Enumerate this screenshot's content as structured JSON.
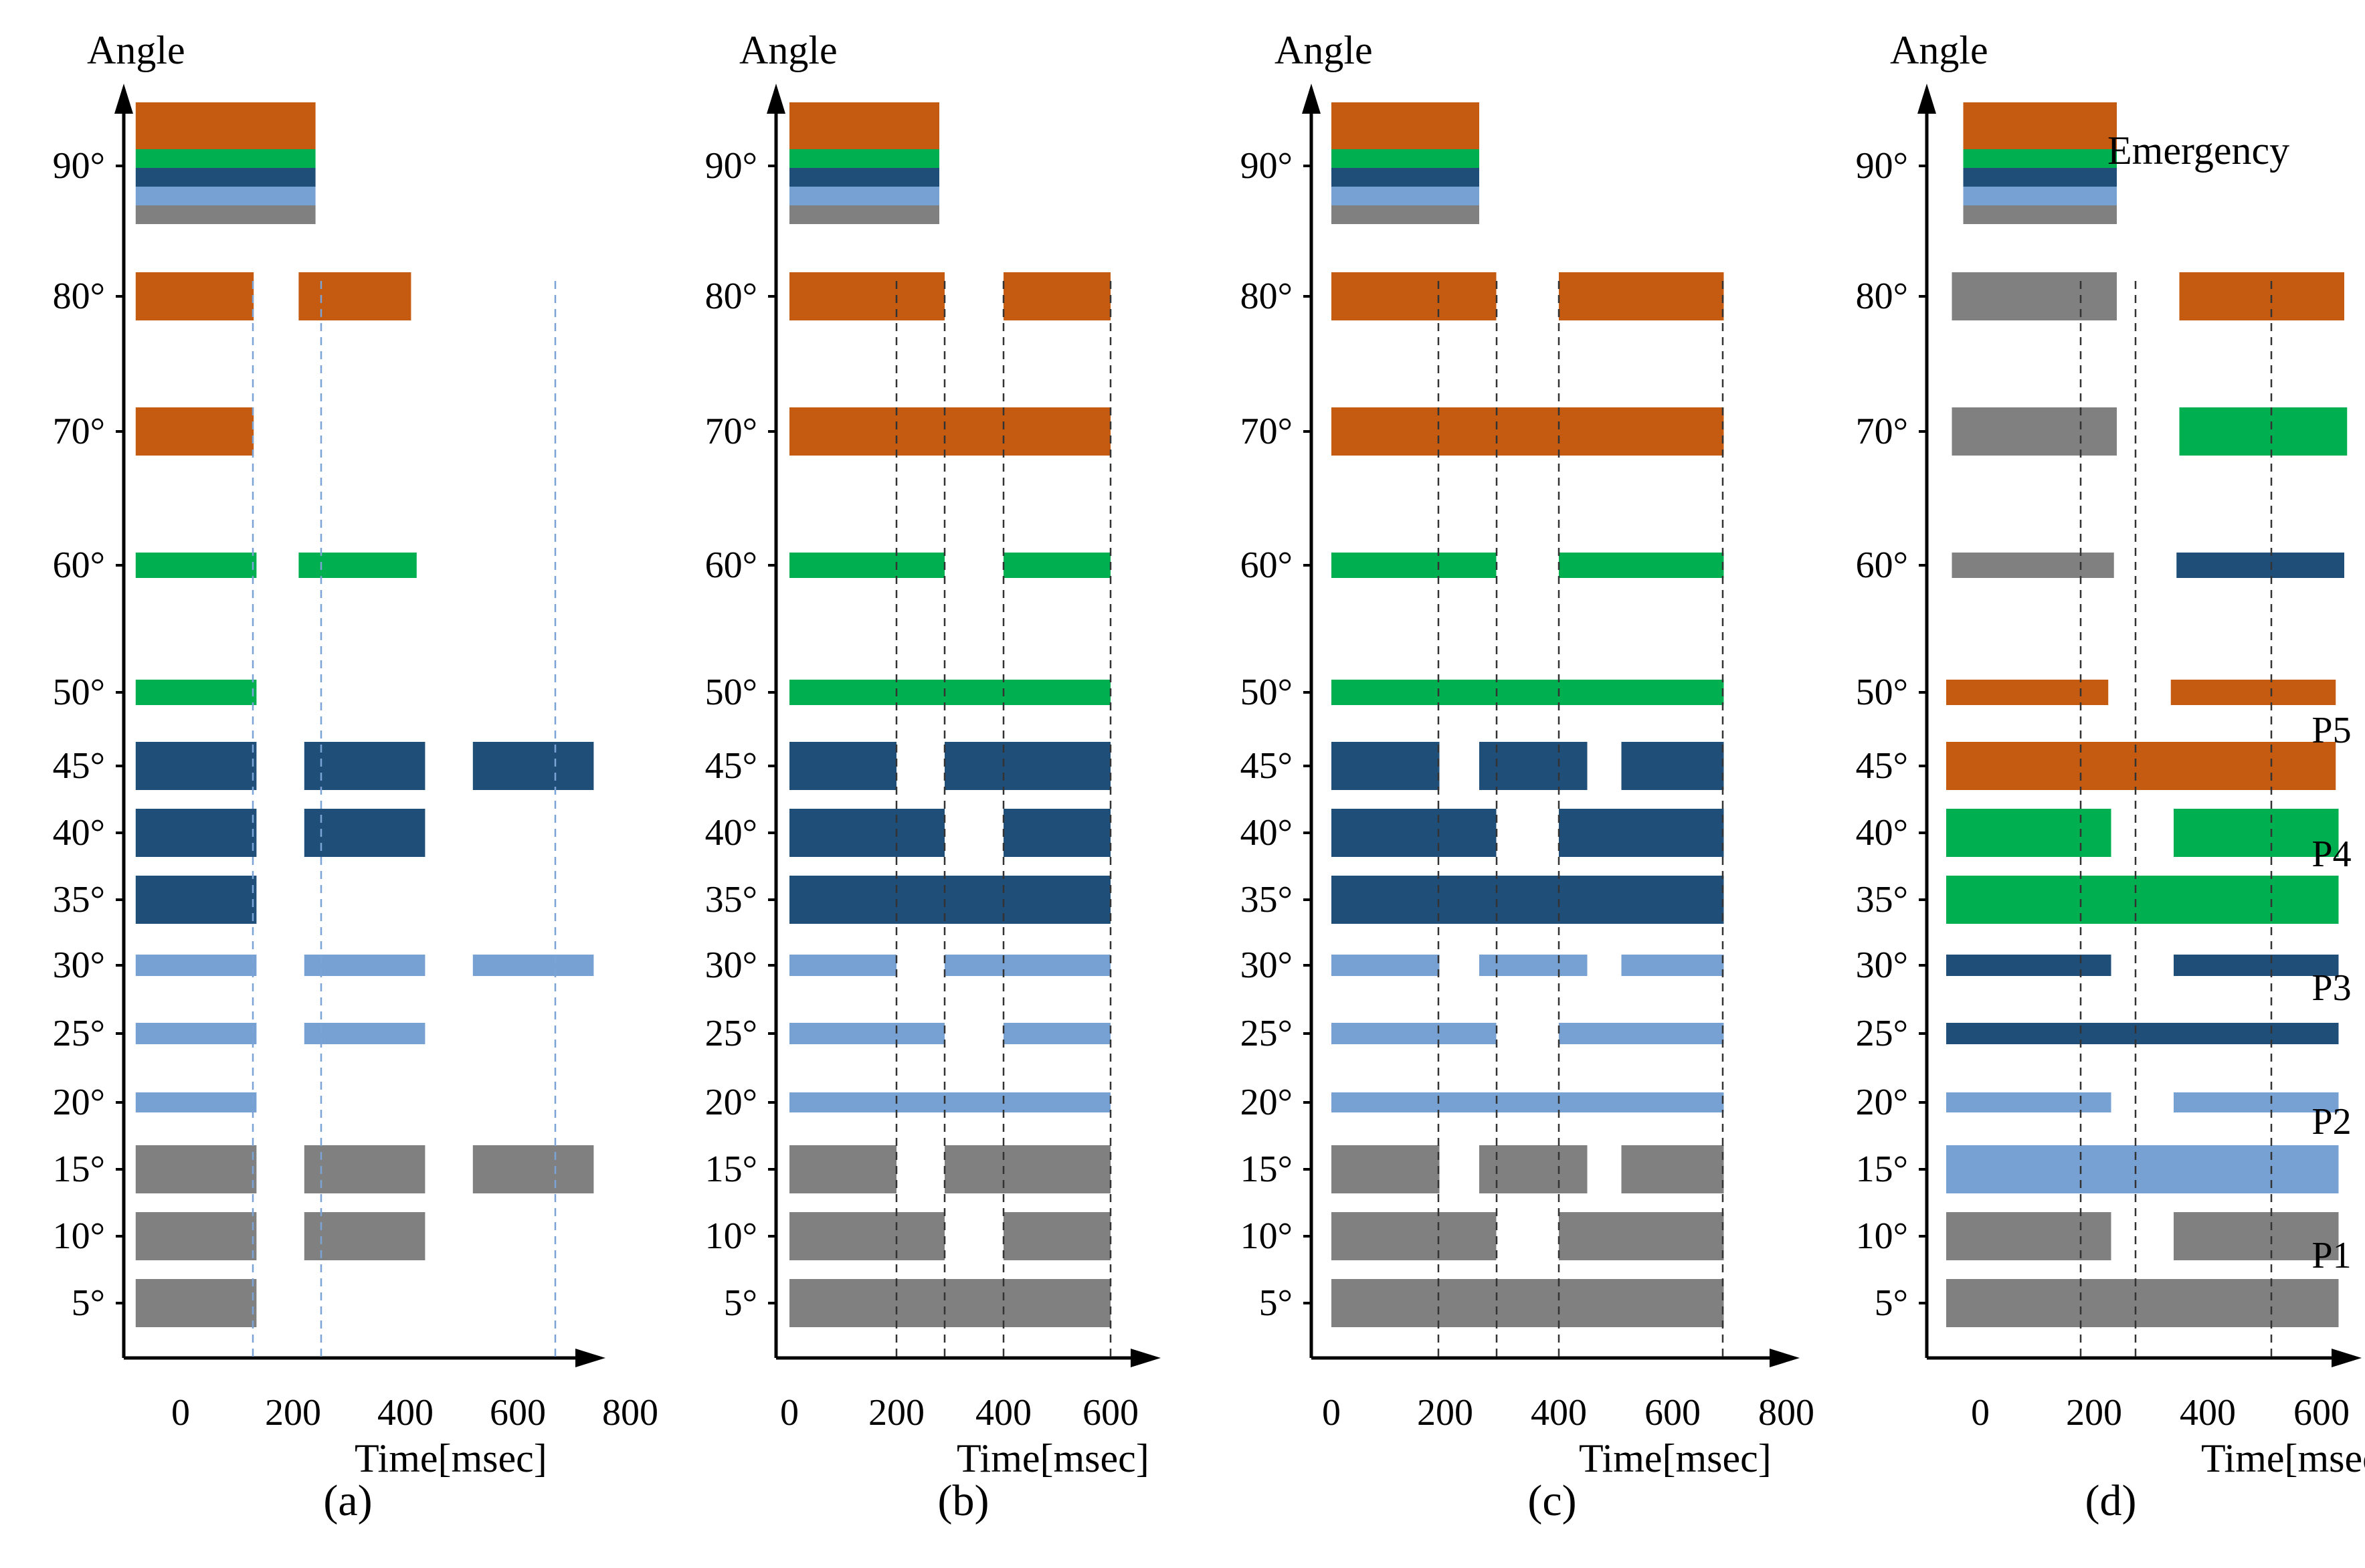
{
  "colors": {
    "orange": "#c55a11",
    "green": "#00b050",
    "darkblue": "#1f4e79",
    "lightblue": "#77a1d3",
    "gray": "#808080"
  },
  "chart_data": [
    {
      "type": "bar",
      "panel_label": "(a)",
      "ylabel": "Angle",
      "xlabel": "Time[msec]",
      "x_ticks": [
        "0",
        "200",
        "400",
        "600",
        "800"
      ],
      "y_ticks": [
        "5°",
        "10°",
        "15°",
        "20°",
        "25°",
        "30°",
        "35°",
        "40°",
        "45°",
        "50°",
        "60°",
        "70°",
        "80°",
        "90°"
      ],
      "emergency_stack": {
        "colors": [
          "orange",
          "green",
          "darkblue",
          "lightblue",
          "gray"
        ],
        "x": [
          -80,
          240
        ]
      },
      "bars": [
        {
          "angle": 80,
          "color": "orange",
          "segments": [
            [
              -80,
              130
            ],
            [
              210,
              410
            ]
          ]
        },
        {
          "angle": 70,
          "color": "orange",
          "segments": [
            [
              -80,
              130
            ]
          ]
        },
        {
          "angle": 60,
          "color": "green",
          "segments": [
            [
              -80,
              135
            ],
            [
              210,
              420
            ]
          ]
        },
        {
          "angle": 50,
          "color": "green",
          "segments": [
            [
              -80,
              135
            ]
          ]
        },
        {
          "angle": 45,
          "color": "darkblue",
          "segments": [
            [
              -80,
              135
            ],
            [
              220,
              435
            ],
            [
              520,
              735
            ]
          ]
        },
        {
          "angle": 40,
          "color": "darkblue",
          "segments": [
            [
              -80,
              135
            ],
            [
              220,
              435
            ]
          ]
        },
        {
          "angle": 35,
          "color": "darkblue",
          "segments": [
            [
              -80,
              135
            ]
          ]
        },
        {
          "angle": 30,
          "color": "lightblue",
          "segments": [
            [
              -80,
              135
            ],
            [
              220,
              435
            ],
            [
              520,
              735
            ]
          ]
        },
        {
          "angle": 25,
          "color": "lightblue",
          "segments": [
            [
              -80,
              135
            ],
            [
              220,
              435
            ]
          ]
        },
        {
          "angle": 20,
          "color": "lightblue",
          "segments": [
            [
              -80,
              135
            ]
          ]
        },
        {
          "angle": 15,
          "color": "gray",
          "segments": [
            [
              -80,
              135
            ],
            [
              220,
              435
            ],
            [
              520,
              735
            ]
          ]
        },
        {
          "angle": 10,
          "color": "gray",
          "segments": [
            [
              -80,
              135
            ],
            [
              220,
              435
            ]
          ]
        },
        {
          "angle": 5,
          "color": "gray",
          "segments": [
            [
              -80,
              135
            ]
          ]
        }
      ]
    },
    {
      "type": "bar",
      "panel_label": "(b)",
      "ylabel": "Angle",
      "xlabel": "Time[msec]",
      "x_ticks": [
        "0",
        "200",
        "400",
        "600"
      ],
      "y_ticks": [
        "5°",
        "10°",
        "15°",
        "20°",
        "25°",
        "30°",
        "35°",
        "40°",
        "45°",
        "50°",
        "60°",
        "70°",
        "80°",
        "90°"
      ],
      "emergency_stack": {
        "colors": [
          "orange",
          "green",
          "darkblue",
          "lightblue",
          "gray"
        ],
        "x": [
          0,
          280
        ]
      },
      "bars": [
        {
          "angle": 80,
          "color": "orange",
          "segments": [
            [
              0,
              290
            ],
            [
              400,
              600
            ]
          ]
        },
        {
          "angle": 70,
          "color": "orange",
          "segments": [
            [
              0,
              600
            ]
          ]
        },
        {
          "angle": 60,
          "color": "green",
          "segments": [
            [
              0,
              290
            ],
            [
              400,
              600
            ]
          ]
        },
        {
          "angle": 50,
          "color": "green",
          "segments": [
            [
              0,
              600
            ]
          ]
        },
        {
          "angle": 45,
          "color": "darkblue",
          "segments": [
            [
              0,
              200
            ],
            [
              290,
              600
            ]
          ]
        },
        {
          "angle": 40,
          "color": "darkblue",
          "segments": [
            [
              0,
              290
            ],
            [
              400,
              600
            ]
          ]
        },
        {
          "angle": 35,
          "color": "darkblue",
          "segments": [
            [
              0,
              600
            ]
          ]
        },
        {
          "angle": 30,
          "color": "lightblue",
          "segments": [
            [
              0,
              200
            ],
            [
              290,
              600
            ]
          ]
        },
        {
          "angle": 25,
          "color": "lightblue",
          "segments": [
            [
              0,
              290
            ],
            [
              400,
              600
            ]
          ]
        },
        {
          "angle": 20,
          "color": "lightblue",
          "segments": [
            [
              0,
              600
            ]
          ]
        },
        {
          "angle": 15,
          "color": "gray",
          "segments": [
            [
              0,
              200
            ],
            [
              290,
              600
            ]
          ]
        },
        {
          "angle": 10,
          "color": "gray",
          "segments": [
            [
              0,
              290
            ],
            [
              400,
              600
            ]
          ]
        },
        {
          "angle": 5,
          "color": "gray",
          "segments": [
            [
              0,
              600
            ]
          ]
        }
      ]
    },
    {
      "type": "bar",
      "panel_label": "(c)",
      "ylabel": "Angle",
      "xlabel": "Time[msec]",
      "x_ticks": [
        "0",
        "200",
        "400",
        "600",
        "800"
      ],
      "y_ticks": [
        "5°",
        "10°",
        "15°",
        "20°",
        "25°",
        "30°",
        "35°",
        "40°",
        "45°",
        "50°",
        "60°",
        "70°",
        "80°",
        "90°"
      ],
      "emergency_stack": {
        "colors": [
          "orange",
          "green",
          "darkblue",
          "lightblue",
          "gray"
        ],
        "x": [
          0,
          260
        ]
      },
      "bars": [
        {
          "angle": 80,
          "color": "orange",
          "segments": [
            [
              0,
              290
            ],
            [
              400,
              690
            ]
          ]
        },
        {
          "angle": 70,
          "color": "orange",
          "segments": [
            [
              0,
              690
            ]
          ]
        },
        {
          "angle": 60,
          "color": "green",
          "segments": [
            [
              0,
              290
            ],
            [
              400,
              690
            ]
          ]
        },
        {
          "angle": 50,
          "color": "green",
          "segments": [
            [
              0,
              690
            ]
          ]
        },
        {
          "angle": 45,
          "color": "darkblue",
          "segments": [
            [
              0,
              190
            ],
            [
              260,
              450
            ],
            [
              510,
              690
            ]
          ]
        },
        {
          "angle": 40,
          "color": "darkblue",
          "segments": [
            [
              0,
              290
            ],
            [
              400,
              690
            ]
          ]
        },
        {
          "angle": 35,
          "color": "darkblue",
          "segments": [
            [
              0,
              690
            ]
          ]
        },
        {
          "angle": 30,
          "color": "lightblue",
          "segments": [
            [
              0,
              190
            ],
            [
              260,
              450
            ],
            [
              510,
              690
            ]
          ]
        },
        {
          "angle": 25,
          "color": "lightblue",
          "segments": [
            [
              0,
              290
            ],
            [
              400,
              690
            ]
          ]
        },
        {
          "angle": 20,
          "color": "lightblue",
          "segments": [
            [
              0,
              690
            ]
          ]
        },
        {
          "angle": 15,
          "color": "gray",
          "segments": [
            [
              0,
              190
            ],
            [
              260,
              450
            ],
            [
              510,
              690
            ]
          ]
        },
        {
          "angle": 10,
          "color": "gray",
          "segments": [
            [
              0,
              290
            ],
            [
              400,
              690
            ]
          ]
        },
        {
          "angle": 5,
          "color": "gray",
          "segments": [
            [
              0,
              690
            ]
          ]
        }
      ]
    },
    {
      "type": "bar",
      "panel_label": "(d)",
      "ylabel": "Angle",
      "xlabel": "Time[msec]",
      "x_ticks": [
        "0",
        "200",
        "400",
        "600"
      ],
      "y_ticks": [
        "5°",
        "10°",
        "15°",
        "20°",
        "25°",
        "30°",
        "35°",
        "40°",
        "45°",
        "50°",
        "60°",
        "70°",
        "80°",
        "90°"
      ],
      "emergency_label": "Emergency",
      "group_labels": [
        "P1",
        "P2",
        "P3",
        "P4",
        "P5"
      ],
      "emergency_stack": {
        "colors": [
          "orange",
          "green",
          "darkblue",
          "lightblue",
          "gray"
        ],
        "x": [
          -30,
          240
        ]
      },
      "bars": [
        {
          "angle": 80,
          "color": "gray",
          "left": [
            -50,
            240
          ],
          "right": [
            350,
            640
          ]
        },
        {
          "angle": 70,
          "color": "gray",
          "left": [
            -50,
            240
          ],
          "right_color": "green",
          "right": [
            350,
            645
          ]
        },
        {
          "angle": 60,
          "color": "gray",
          "left": [
            -50,
            235
          ],
          "right_color": "darkblue",
          "right": [
            345,
            640
          ]
        },
        {
          "angle": 50,
          "color": "orange",
          "segments": [
            [
              -60,
              225
            ],
            [
              335,
              625
            ]
          ]
        },
        {
          "angle": 45,
          "color": "orange",
          "segments": [
            [
              -60,
              625
            ]
          ]
        },
        {
          "angle": 40,
          "color": "green",
          "segments": [
            [
              -60,
              230
            ],
            [
              340,
              630
            ]
          ]
        },
        {
          "angle": 35,
          "color": "green",
          "segments": [
            [
              -60,
              630
            ]
          ]
        },
        {
          "angle": 30,
          "color": "darkblue",
          "segments": [
            [
              -60,
              230
            ],
            [
              340,
              630
            ]
          ]
        },
        {
          "angle": 25,
          "color": "darkblue",
          "segments": [
            [
              -60,
              630
            ]
          ]
        },
        {
          "angle": 20,
          "color": "lightblue",
          "segments": [
            [
              -60,
              230
            ],
            [
              340,
              630
            ]
          ]
        },
        {
          "angle": 15,
          "color": "lightblue",
          "segments": [
            [
              -60,
              630
            ]
          ]
        },
        {
          "angle": 10,
          "color": "gray",
          "segments": [
            [
              -60,
              230
            ],
            [
              340,
              630
            ]
          ]
        },
        {
          "angle": 5,
          "color": "gray",
          "segments": [
            [
              -60,
              630
            ]
          ]
        }
      ]
    }
  ]
}
